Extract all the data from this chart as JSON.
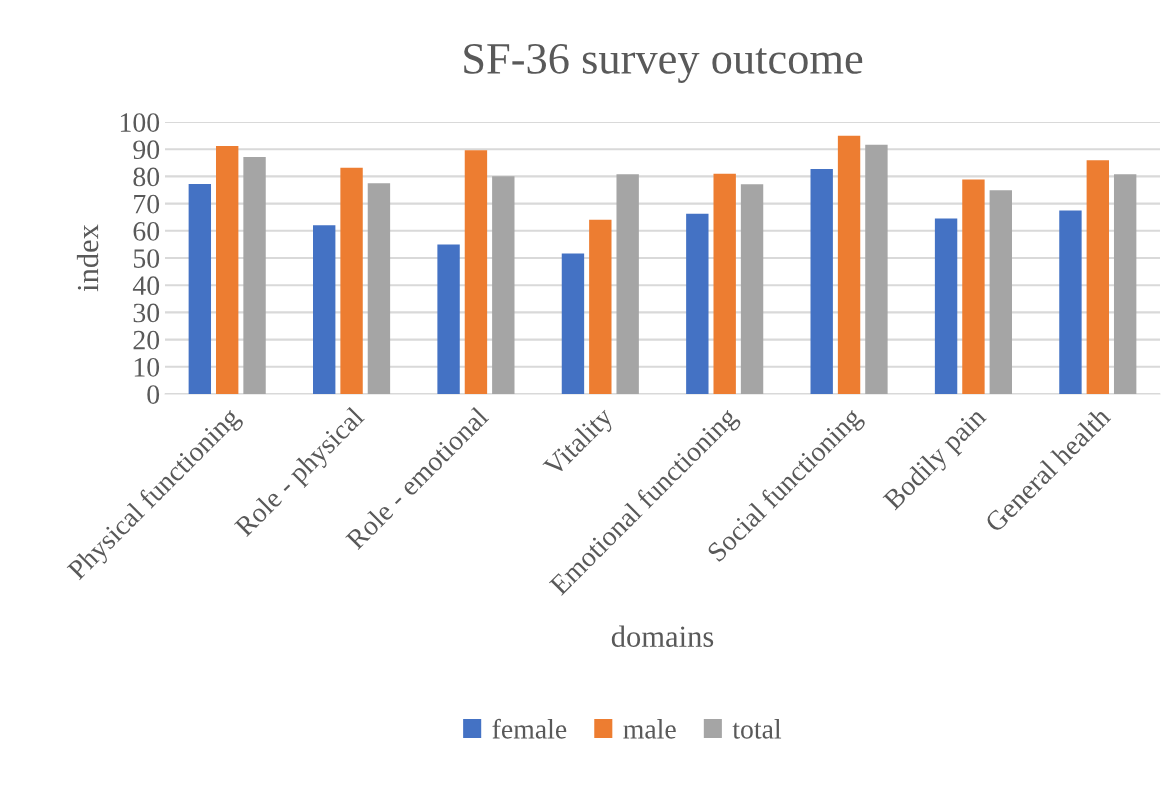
{
  "chart_data": {
    "type": "bar",
    "title": "SF-36 survey outcome",
    "xlabel": "domains",
    "ylabel": "index",
    "categories": [
      "Physical functioning",
      "Role - physical",
      "Role - emotional",
      "Vitality",
      "Emotional functioning",
      "Social functioning",
      "Bodily pain",
      "General health"
    ],
    "series": [
      {
        "name": "female",
        "color": "#4472c4",
        "values": [
          77.2,
          62.0,
          55.0,
          51.7,
          66.3,
          82.7,
          64.5,
          67.5
        ]
      },
      {
        "name": "male",
        "color": "#ed7d31",
        "values": [
          91.2,
          83.2,
          89.6,
          64.1,
          81.0,
          94.9,
          78.9,
          85.9
        ]
      },
      {
        "name": "total",
        "color": "#a5a5a5",
        "values": [
          87.1,
          77.5,
          80.1,
          80.8,
          77.1,
          91.6,
          74.9,
          80.8
        ]
      }
    ],
    "ylim": [
      0,
      100
    ],
    "yticks": [
      0,
      10,
      20,
      30,
      40,
      50,
      60,
      70,
      80,
      90,
      100
    ],
    "grid": "y",
    "legend": "bottom"
  }
}
